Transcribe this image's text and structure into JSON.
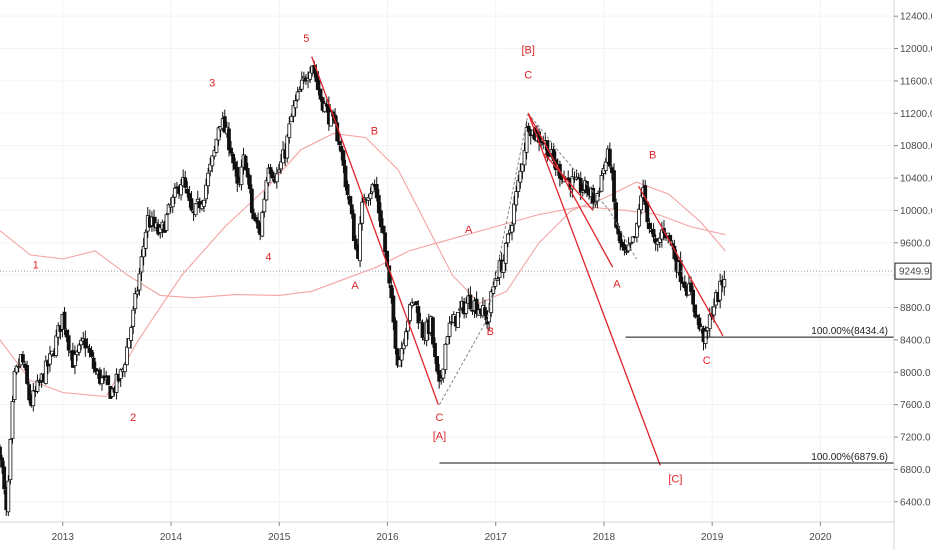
{
  "chart_data": {
    "type": "candlestick",
    "title": "",
    "x_ticks": [
      "2013",
      "2014",
      "2015",
      "2016",
      "2017",
      "2018",
      "2019",
      "2020"
    ],
    "y_ticks": [
      6400,
      6800,
      7200,
      7600,
      8000,
      8400,
      8800,
      9200,
      9600,
      10000,
      10400,
      10800,
      11200,
      11600,
      12000,
      12400
    ],
    "ylim": [
      6150,
      12600
    ],
    "xlim": [
      2012.42,
      2020.68
    ],
    "last_price": {
      "label": "9249.9",
      "value": 9249.9
    },
    "price_path": [
      [
        2012.42,
        7050
      ],
      [
        2012.48,
        6200
      ],
      [
        2012.55,
        7900
      ],
      [
        2012.62,
        8200
      ],
      [
        2012.7,
        7600
      ],
      [
        2012.8,
        7900
      ],
      [
        2012.9,
        8200
      ],
      [
        2013.0,
        8700
      ],
      [
        2013.1,
        8100
      ],
      [
        2013.2,
        8400
      ],
      [
        2013.3,
        8000
      ],
      [
        2013.45,
        7750
      ],
      [
        2013.55,
        8000
      ],
      [
        2013.65,
        8700
      ],
      [
        2013.72,
        9300
      ],
      [
        2013.78,
        9900
      ],
      [
        2013.9,
        9700
      ],
      [
        2014.0,
        10050
      ],
      [
        2014.1,
        10400
      ],
      [
        2014.2,
        9900
      ],
      [
        2014.3,
        10200
      ],
      [
        2014.4,
        10700
      ],
      [
        2014.45,
        11150
      ],
      [
        2014.55,
        10800
      ],
      [
        2014.62,
        10200
      ],
      [
        2014.68,
        10700
      ],
      [
        2014.75,
        9950
      ],
      [
        2014.82,
        9700
      ],
      [
        2014.9,
        10600
      ],
      [
        2014.97,
        10400
      ],
      [
        2015.05,
        10700
      ],
      [
        2015.12,
        11200
      ],
      [
        2015.2,
        11500
      ],
      [
        2015.3,
        11850
      ],
      [
        2015.38,
        11400
      ],
      [
        2015.45,
        11200
      ],
      [
        2015.55,
        10900
      ],
      [
        2015.62,
        10300
      ],
      [
        2015.68,
        9800
      ],
      [
        2015.72,
        9400
      ],
      [
        2015.78,
        10200
      ],
      [
        2015.88,
        10300
      ],
      [
        2015.96,
        9700
      ],
      [
        2016.02,
        9000
      ],
      [
        2016.1,
        8100
      ],
      [
        2016.18,
        8650
      ],
      [
        2016.25,
        8900
      ],
      [
        2016.33,
        8450
      ],
      [
        2016.4,
        8600
      ],
      [
        2016.45,
        8000
      ],
      [
        2016.48,
        7770
      ],
      [
        2016.55,
        8500
      ],
      [
        2016.65,
        8700
      ],
      [
        2016.75,
        8900
      ],
      [
        2016.85,
        8800
      ],
      [
        2016.92,
        8650
      ],
      [
        2017.0,
        9200
      ],
      [
        2017.08,
        9400
      ],
      [
        2017.15,
        9900
      ],
      [
        2017.22,
        10400
      ],
      [
        2017.3,
        11100
      ],
      [
        2017.35,
        10950
      ],
      [
        2017.45,
        10850
      ],
      [
        2017.55,
        10550
      ],
      [
        2017.65,
        10400
      ],
      [
        2017.75,
        10300
      ],
      [
        2017.85,
        10250
      ],
      [
        2017.92,
        10100
      ],
      [
        2018.0,
        10550
      ],
      [
        2018.05,
        10700
      ],
      [
        2018.12,
        9700
      ],
      [
        2018.2,
        9400
      ],
      [
        2018.3,
        9700
      ],
      [
        2018.35,
        10300
      ],
      [
        2018.42,
        9800
      ],
      [
        2018.48,
        9500
      ],
      [
        2018.55,
        9800
      ],
      [
        2018.62,
        9600
      ],
      [
        2018.68,
        9300
      ],
      [
        2018.75,
        9100
      ],
      [
        2018.82,
        8900
      ],
      [
        2018.88,
        8550
      ],
      [
        2018.94,
        8400
      ],
      [
        2019.0,
        8800
      ],
      [
        2019.07,
        9000
      ],
      [
        2019.12,
        9249.9
      ]
    ],
    "moving_averages": [
      {
        "color": "#f4a3a3",
        "points": [
          [
            2012.42,
            9750
          ],
          [
            2012.7,
            9450
          ],
          [
            2013.0,
            9400
          ],
          [
            2013.3,
            9500
          ],
          [
            2013.6,
            9200
          ],
          [
            2013.9,
            8950
          ],
          [
            2014.2,
            8920
          ],
          [
            2014.6,
            8960
          ],
          [
            2015.0,
            8950
          ],
          [
            2015.3,
            9000
          ],
          [
            2015.6,
            9150
          ],
          [
            2015.9,
            9300
          ],
          [
            2016.2,
            9500
          ],
          [
            2016.6,
            9650
          ],
          [
            2017.0,
            9800
          ],
          [
            2017.4,
            9950
          ],
          [
            2017.8,
            10050
          ],
          [
            2018.2,
            10000
          ],
          [
            2018.5,
            9950
          ],
          [
            2018.8,
            9800
          ],
          [
            2019.12,
            9700
          ]
        ]
      },
      {
        "color": "#f4a3a3",
        "points": [
          [
            2012.42,
            8400
          ],
          [
            2012.7,
            7900
          ],
          [
            2013.0,
            7750
          ],
          [
            2013.4,
            7700
          ],
          [
            2013.7,
            8400
          ],
          [
            2014.1,
            9200
          ],
          [
            2014.5,
            9800
          ],
          [
            2014.9,
            10300
          ],
          [
            2015.2,
            10750
          ],
          [
            2015.5,
            10950
          ],
          [
            2015.8,
            10900
          ],
          [
            2016.1,
            10500
          ],
          [
            2016.35,
            9850
          ],
          [
            2016.6,
            9200
          ],
          [
            2016.85,
            8850
          ],
          [
            2017.1,
            9000
          ],
          [
            2017.4,
            9600
          ],
          [
            2017.7,
            10000
          ],
          [
            2018.0,
            10150
          ],
          [
            2018.3,
            10350
          ],
          [
            2018.6,
            10200
          ],
          [
            2018.9,
            9850
          ],
          [
            2019.12,
            9500
          ]
        ]
      }
    ],
    "wave_labels": [
      {
        "text": "1",
        "x": 2012.75,
        "y": 9280
      },
      {
        "text": "2",
        "x": 2013.65,
        "y": 7400
      },
      {
        "text": "3",
        "x": 2014.38,
        "y": 11530
      },
      {
        "text": "4",
        "x": 2014.9,
        "y": 9380
      },
      {
        "text": "5",
        "x": 2015.25,
        "y": 12080
      },
      {
        "text": "A",
        "x": 2015.7,
        "y": 9030
      },
      {
        "text": "B",
        "x": 2015.88,
        "y": 10940
      },
      {
        "text": "C",
        "x": 2016.48,
        "y": 7400
      },
      {
        "text": "[A]",
        "x": 2016.48,
        "y": 7170
      },
      {
        "text": "A",
        "x": 2016.75,
        "y": 9720
      },
      {
        "text": "B",
        "x": 2016.95,
        "y": 8460
      },
      {
        "text": "[B]",
        "x": 2017.3,
        "y": 11940
      },
      {
        "text": "C",
        "x": 2017.3,
        "y": 11630
      },
      {
        "text": "A",
        "x": 2018.12,
        "y": 9050
      },
      {
        "text": "B",
        "x": 2018.45,
        "y": 10640
      },
      {
        "text": "C",
        "x": 2018.95,
        "y": 8100
      },
      {
        "text": "[C]",
        "x": 2018.66,
        "y": 6640
      }
    ],
    "trendlines": [
      {
        "color": "#e0242a",
        "from": [
          2015.3,
          11900
        ],
        "to": [
          2016.47,
          7600
        ]
      },
      {
        "color": "#e0242a",
        "from": [
          2017.3,
          11200
        ],
        "to": [
          2018.08,
          9300
        ]
      },
      {
        "color": "#e0242a",
        "from": [
          2017.3,
          11200
        ],
        "to": [
          2018.52,
          6850
        ]
      },
      {
        "color": "#e0242a",
        "from": [
          2018.32,
          10300
        ],
        "to": [
          2019.1,
          8450
        ]
      },
      {
        "color": "#e0242a",
        "from": [
          2017.45,
          10700
        ],
        "to": [
          2017.9,
          10000
        ]
      }
    ],
    "dashed_lines": [
      {
        "color": "#888888",
        "points": [
          [
            2016.48,
            7600
          ],
          [
            2016.92,
            8650
          ],
          [
            2017.3,
            11200
          ]
        ]
      },
      {
        "color": "#888888",
        "points": [
          [
            2017.3,
            11200
          ],
          [
            2017.6,
            10700
          ],
          [
            2018.05,
            10000
          ],
          [
            2018.3,
            9400
          ]
        ]
      }
    ],
    "targets": [
      {
        "label": "100.00%(8434.4)",
        "value": 8434.4,
        "x_start": 2018.2,
        "x_end": 2020.68
      },
      {
        "label": "100.00%(6879.6)",
        "value": 6879.6,
        "x_start": 2016.48,
        "x_end": 2020.68
      }
    ]
  }
}
